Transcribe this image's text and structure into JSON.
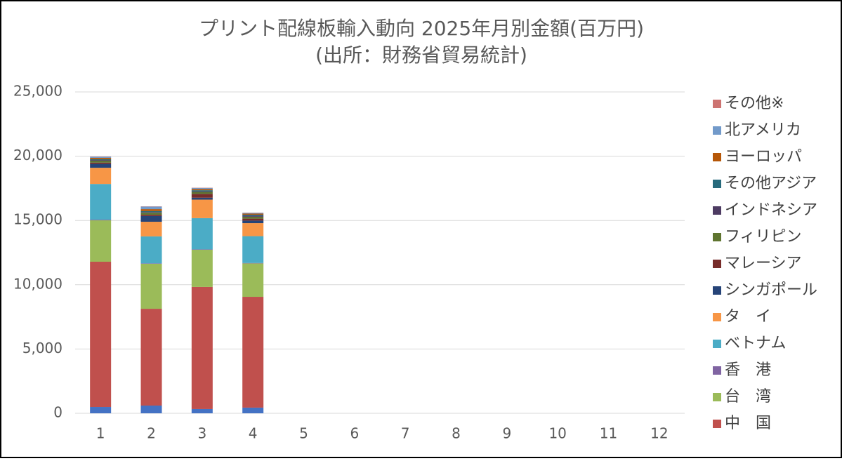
{
  "chart_data": {
    "type": "stacked_bar",
    "title": "プリント配線板輸入動向 2025年月別金額(百万円)",
    "subtitle": "(出所：財務省貿易統計)",
    "categories": [
      "1",
      "2",
      "3",
      "4",
      "5",
      "6",
      "7",
      "8",
      "9",
      "10",
      "11",
      "12"
    ],
    "ylim": [
      0,
      25000
    ],
    "yticks": [
      {
        "value": 0,
        "label": "0"
      },
      {
        "value": 5000,
        "label": "5,000"
      },
      {
        "value": 10000,
        "label": "10,000"
      },
      {
        "value": 15000,
        "label": "15,000"
      },
      {
        "value": 20000,
        "label": "20,000"
      },
      {
        "value": 25000,
        "label": "25,000"
      }
    ],
    "grid": true,
    "legend": "right",
    "series": [
      {
        "name": null,
        "color": "#4472c4",
        "values": [
          490,
          600,
          330,
          440,
          null,
          null,
          null,
          null,
          null,
          null,
          null,
          null
        ]
      },
      {
        "name": "中　国",
        "color": "#c0504d",
        "values": [
          11300,
          7530,
          9500,
          8620,
          null,
          null,
          null,
          null,
          null,
          null,
          null,
          null
        ]
      },
      {
        "name": "台　湾",
        "color": "#9bbb59",
        "values": [
          3220,
          3500,
          2890,
          2600,
          null,
          null,
          null,
          null,
          null,
          null,
          null,
          null
        ]
      },
      {
        "name": "香　港",
        "color": "#8064a2",
        "values": [
          50,
          30,
          30,
          30,
          null,
          null,
          null,
          null,
          null,
          null,
          null,
          null
        ]
      },
      {
        "name": "ベトナム",
        "color": "#4bacc6",
        "values": [
          2780,
          2100,
          2430,
          2090,
          null,
          null,
          null,
          null,
          null,
          null,
          null,
          null
        ]
      },
      {
        "name": "タ　イ",
        "color": "#f79646",
        "values": [
          1260,
          1140,
          1440,
          1010,
          null,
          null,
          null,
          null,
          null,
          null,
          null,
          null
        ]
      },
      {
        "name": "シンガポール",
        "color": "#264478",
        "values": [
          300,
          450,
          150,
          200,
          null,
          null,
          null,
          null,
          null,
          null,
          null,
          null
        ]
      },
      {
        "name": "マレーシア",
        "color": "#772c2a",
        "values": [
          100,
          100,
          300,
          150,
          null,
          null,
          null,
          null,
          null,
          null,
          null,
          null
        ]
      },
      {
        "name": "フィリピン",
        "color": "#5f7530",
        "values": [
          150,
          150,
          150,
          150,
          null,
          null,
          null,
          null,
          null,
          null,
          null,
          null
        ]
      },
      {
        "name": "インドネシア",
        "color": "#4d3b62",
        "values": [
          50,
          50,
          50,
          80,
          null,
          null,
          null,
          null,
          null,
          null,
          null,
          null
        ]
      },
      {
        "name": "その他アジア",
        "color": "#276a7c",
        "values": [
          70,
          80,
          80,
          80,
          null,
          null,
          null,
          null,
          null,
          null,
          null,
          null
        ]
      },
      {
        "name": "ヨーロッパ",
        "color": "#b65708",
        "values": [
          100,
          150,
          100,
          80,
          null,
          null,
          null,
          null,
          null,
          null,
          null,
          null
        ]
      },
      {
        "name": "北アメリカ",
        "color": "#729aca",
        "values": [
          80,
          200,
          80,
          60,
          null,
          null,
          null,
          null,
          null,
          null,
          null,
          null
        ]
      },
      {
        "name": "その他※",
        "color": "#cd7371",
        "values": [
          20,
          20,
          20,
          20,
          null,
          null,
          null,
          null,
          null,
          null,
          null,
          null
        ]
      }
    ]
  }
}
